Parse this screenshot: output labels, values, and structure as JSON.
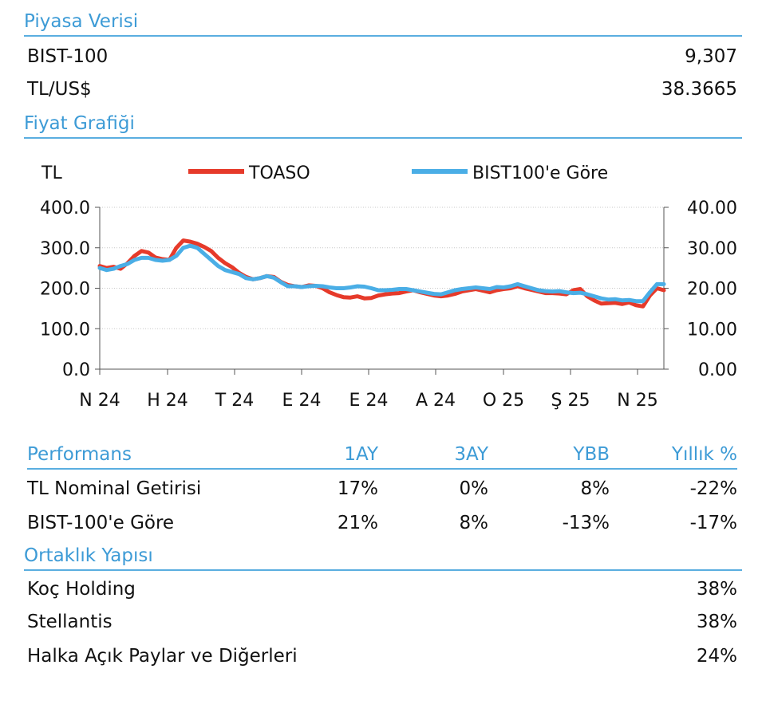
{
  "market": {
    "title": "Piyasa Verisi",
    "rows": [
      {
        "label": "BIST-100",
        "value": "9,307"
      },
      {
        "label": "TL/US$",
        "value": "38.3665"
      }
    ]
  },
  "price_chart": {
    "title": "Fiyat Grafiği"
  },
  "chart_data": {
    "type": "line",
    "unit_label": "TL",
    "x_ticks": [
      "N 24",
      "H 24",
      "T 24",
      "E 24",
      "E 24",
      "A 24",
      "O 25",
      "Ş 25",
      "N 25"
    ],
    "y_left": {
      "ticks": [
        "400.0",
        "300.0",
        "200.0",
        "100.0",
        "0.0"
      ],
      "range": [
        0,
        400
      ]
    },
    "y_right": {
      "ticks": [
        "40.00",
        "30.00",
        "20.00",
        "10.00",
        "0.00"
      ],
      "range": [
        0,
        40
      ]
    },
    "grid": true,
    "legend_position": "top",
    "series": [
      {
        "name": "TOASO",
        "color": "#e63a2a",
        "axis": "left",
        "values": [
          255,
          250,
          253,
          248,
          262,
          280,
          292,
          288,
          276,
          272,
          270,
          300,
          318,
          315,
          310,
          302,
          292,
          275,
          262,
          252,
          238,
          228,
          222,
          225,
          230,
          228,
          216,
          208,
          205,
          203,
          207,
          206,
          200,
          190,
          183,
          178,
          177,
          180,
          175,
          176,
          182,
          185,
          187,
          188,
          192,
          195,
          190,
          186,
          182,
          180,
          182,
          186,
          192,
          195,
          198,
          194,
          190,
          195,
          198,
          200,
          205,
          200,
          196,
          192,
          188,
          188,
          187,
          185,
          195,
          198,
          180,
          170,
          162,
          163,
          164,
          161,
          165,
          158,
          155,
          182,
          200,
          195
        ]
      },
      {
        "name": "BIST100'e Göre",
        "color": "#4aaee6",
        "axis": "right",
        "values": [
          25,
          24.5,
          24.8,
          25.5,
          26,
          27,
          27.5,
          27.5,
          27,
          26.8,
          27,
          28,
          30,
          30.5,
          30,
          28.5,
          27,
          25.5,
          24.5,
          24,
          23.5,
          22.5,
          22.2,
          22.5,
          23,
          22.6,
          21.5,
          20.5,
          20.5,
          20.3,
          20.5,
          20.6,
          20.5,
          20.2,
          20,
          20,
          20.2,
          20.5,
          20.4,
          20,
          19.5,
          19.5,
          19.6,
          19.8,
          19.8,
          19.5,
          19.2,
          18.9,
          18.6,
          18.5,
          19,
          19.5,
          19.8,
          20,
          20.2,
          20,
          19.8,
          20.3,
          20.2,
          20.5,
          21,
          20.5,
          20,
          19.5,
          19.3,
          19.2,
          19.3,
          19,
          18.8,
          18.9,
          18.5,
          18,
          17.5,
          17.2,
          17.3,
          17,
          17.1,
          16.8,
          16.8,
          19,
          21,
          21
        ]
      }
    ]
  },
  "performance": {
    "header": {
      "label": "Performans",
      "c1": "1AY",
      "c2": "3AY",
      "c3": "YBB",
      "c4": "Yıllık %"
    },
    "rows": [
      {
        "label": "TL Nominal Getirisi",
        "c1": "17%",
        "c2": "0%",
        "c3": "8%",
        "c4": "-22%"
      },
      {
        "label": "BIST-100'e Göre",
        "c1": "21%",
        "c2": "8%",
        "c3": "-13%",
        "c4": "-17%"
      }
    ]
  },
  "ownership": {
    "title": "Ortaklık Yapısı",
    "rows": [
      {
        "label": "Koç Holding",
        "value": "38%"
      },
      {
        "label": "Stellantis",
        "value": "38%"
      },
      {
        "label": "Halka Açık Paylar ve Diğerleri",
        "value": "24%"
      }
    ]
  }
}
